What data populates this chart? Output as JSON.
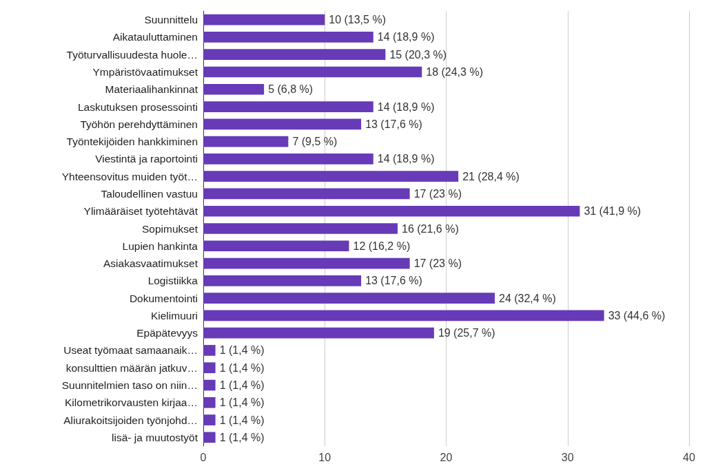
{
  "chart_data": {
    "type": "bar",
    "orientation": "horizontal",
    "color": "#673ab7",
    "grid": "x",
    "categories": [
      "Suunnittelu",
      "Aikatauluttaminen",
      "Työturvallisuudesta huole…",
      "Ympäristövaatimukset",
      "Materiaalihankinnat",
      "Laskutuksen prosessointi",
      "Työhön perehdyttäminen",
      "Työntekijöiden hankkiminen",
      "Viestintä ja raportointi",
      "Yhteensovitus muiden työt…",
      "Taloudellinen vastuu",
      "Ylimääräiset työtehtävät",
      "Sopimukset",
      "Lupien hankinta",
      "Asiakasvaatimukset",
      "Logistiikka",
      "Dokumentointi",
      "Kielimuuri",
      "Epäpätevyys",
      "Useat työmaat samaanaik…",
      "konsulttien määrän jatkuv…",
      "Suunnitelmien taso on niin…",
      "Kilometrikorvausten kirjaa…",
      "Aliurakoitsijoiden työnjohd…",
      "lisä- ja muutostyöt"
    ],
    "values": [
      10,
      14,
      15,
      18,
      5,
      14,
      13,
      7,
      14,
      21,
      17,
      31,
      16,
      12,
      17,
      13,
      24,
      33,
      19,
      1,
      1,
      1,
      1,
      1,
      1
    ],
    "value_labels": [
      "10 (13,5 %)",
      "14 (18,9 %)",
      "15 (20,3 %)",
      "18 (24,3 %)",
      "5 (6,8 %)",
      "14 (18,9 %)",
      "13 (17,6 %)",
      "7 (9,5 %)",
      "14 (18,9 %)",
      "21 (28,4 %)",
      "17 (23 %)",
      "31 (41,9 %)",
      "16 (21,6 %)",
      "12 (16,2 %)",
      "17 (23 %)",
      "13 (17,6 %)",
      "24 (32,4 %)",
      "33 (44,6 %)",
      "19 (25,7 %)",
      "1 (1,4 %)",
      "1 (1,4 %)",
      "1 (1,4 %)",
      "1 (1,4 %)",
      "1 (1,4 %)",
      "1 (1,4 %)"
    ],
    "xlim": [
      0,
      40
    ],
    "xticks": [
      0,
      10,
      20,
      30,
      40
    ]
  }
}
